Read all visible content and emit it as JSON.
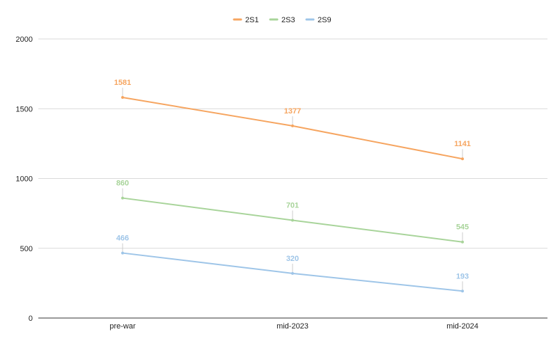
{
  "chart_data": {
    "type": "line",
    "categories": [
      "pre-war",
      "mid-2023",
      "mid-2024"
    ],
    "series": [
      {
        "name": "2S1",
        "values": [
          1581,
          1377,
          1141
        ],
        "color": "#f6a560"
      },
      {
        "name": "2S3",
        "values": [
          860,
          701,
          545
        ],
        "color": "#a8d49a"
      },
      {
        "name": "2S9",
        "values": [
          466,
          320,
          193
        ],
        "color": "#9ec5e8"
      }
    ],
    "ylim": [
      0,
      2000
    ],
    "yticks": [
      0,
      500,
      1000,
      1500,
      2000
    ],
    "legend_position": "top-center",
    "grid": true,
    "data_labels": true
  }
}
